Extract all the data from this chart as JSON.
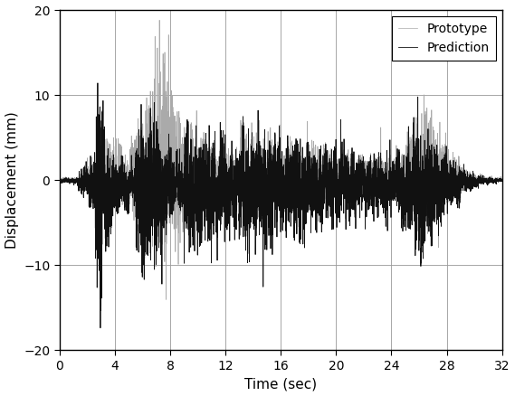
{
  "t_start": 0,
  "t_end": 32,
  "dt": 0.005,
  "ylim": [
    -20,
    20
  ],
  "xlim": [
    0,
    32
  ],
  "xticks": [
    0,
    4,
    8,
    12,
    16,
    20,
    24,
    28,
    32
  ],
  "yticks": [
    -20,
    -10,
    0,
    10,
    20
  ],
  "xlabel": "Time (sec)",
  "ylabel": "Displacement (mm)",
  "proto_label": "Prototype",
  "pred_label": "Prediction",
  "proto_color": "#aaaaaa",
  "pred_color": "#111111",
  "proto_lw": 0.5,
  "pred_lw": 0.6,
  "grid_color": "#999999",
  "grid_lw": 0.6,
  "bg_color": "#ffffff",
  "legend_fontsize": 10,
  "xlabel_fontsize": 11,
  "ylabel_fontsize": 11,
  "tick_fontsize": 10,
  "figsize": [
    5.69,
    4.38
  ],
  "dpi": 100
}
